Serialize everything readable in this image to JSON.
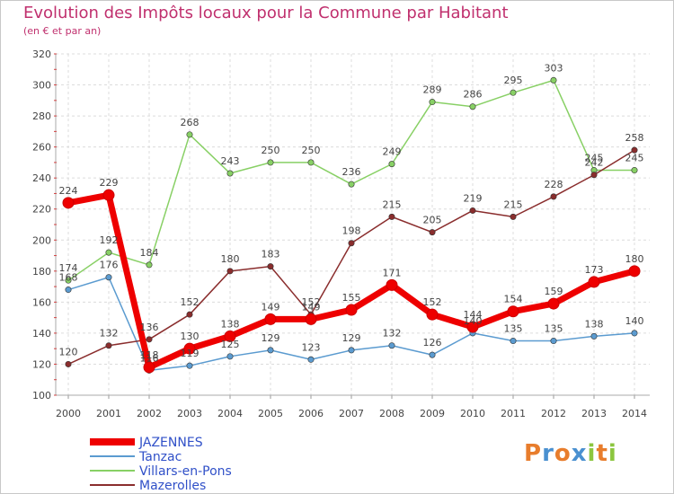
{
  "chart_data": {
    "type": "line",
    "title": "Evolution des Impôts locaux pour la Commune par Habitant",
    "subtitle": "(en € et par an)",
    "x": [
      "2000",
      "2001",
      "2002",
      "2003",
      "2004",
      "2005",
      "2006",
      "2007",
      "2008",
      "2009",
      "2010",
      "2011",
      "2012",
      "2013",
      "2014"
    ],
    "ylim": [
      100,
      320
    ],
    "yticks": [
      100,
      120,
      140,
      160,
      180,
      200,
      220,
      240,
      260,
      280,
      300,
      320
    ],
    "grid": true,
    "legend_position": "bottom-left",
    "series": [
      {
        "name": "JAZENNES",
        "color": "#ee0000",
        "values": [
          224,
          229,
          118,
          130,
          138,
          149,
          149,
          155,
          171,
          152,
          144,
          154,
          159,
          173,
          180
        ]
      },
      {
        "name": "Tanzac",
        "color": "#5b9bd0",
        "values": [
          168,
          176,
          116,
          119,
          125,
          129,
          123,
          129,
          132,
          126,
          140,
          135,
          135,
          138,
          140
        ]
      },
      {
        "name": "Villars-en-Pons",
        "color": "#88d065",
        "values": [
          174,
          192,
          184,
          268,
          243,
          250,
          250,
          236,
          249,
          289,
          286,
          295,
          303,
          245,
          245
        ]
      },
      {
        "name": "Mazerolles",
        "color": "#8a2d2d",
        "values": [
          120,
          132,
          136,
          152,
          180,
          183,
          152,
          198,
          215,
          205,
          219,
          215,
          228,
          242,
          258
        ]
      }
    ]
  },
  "logo": {
    "letters": [
      {
        "ch": "P",
        "color": "#e87d2c"
      },
      {
        "ch": "r",
        "color": "#4a90d0"
      },
      {
        "ch": "o",
        "color": "#e87d2c"
      },
      {
        "ch": "x",
        "color": "#4a90d0"
      },
      {
        "ch": "i",
        "color": "#8cc63f"
      },
      {
        "ch": "t",
        "color": "#e87d2c"
      },
      {
        "ch": "i",
        "color": "#8cc63f"
      }
    ]
  }
}
